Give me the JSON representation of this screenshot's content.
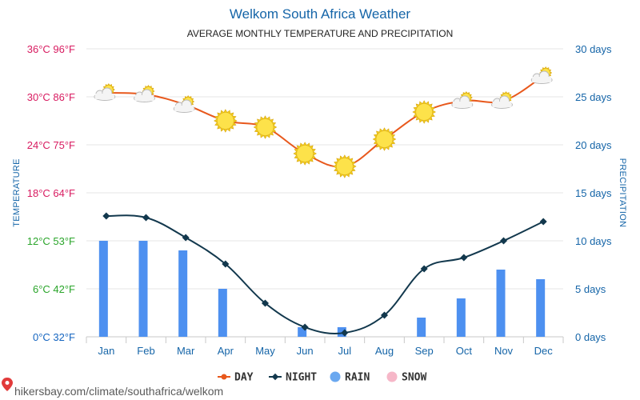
{
  "header": {
    "title": "Welkom South Africa Weather",
    "subtitle": "AVERAGE MONTHLY TEMPERATURE AND PRECIPITATION"
  },
  "footer": {
    "url": "hikersbay.com/climate/southafrica/welkom"
  },
  "colors": {
    "day": "#e8581c",
    "night": "#12384d",
    "rain": "#4d90f0",
    "rain_legend": "#6aa8f0",
    "snow": "#f6b7c8",
    "grid": "#e6e6e6",
    "axis_blue": "#1565a8"
  },
  "chart_data": {
    "type": "line",
    "title": "Welkom South Africa Weather",
    "subtitle": "AVERAGE MONTHLY TEMPERATURE AND PRECIPITATION",
    "ylabel_left": "TEMPERATURE",
    "ylabel_right": "PRECIPITATION",
    "categories": [
      "Jan",
      "Feb",
      "Mar",
      "Apr",
      "May",
      "Jun",
      "Jul",
      "Aug",
      "Sep",
      "Oct",
      "Nov",
      "Dec"
    ],
    "ylim_temp_c": [
      0,
      36
    ],
    "ylim_precip_days": [
      0,
      30
    ],
    "left_ticks": [
      {
        "label": "0°C 32°F",
        "value": 0,
        "color": "#1565c0"
      },
      {
        "label": "6°C 42°F",
        "value": 6,
        "color": "#2aa52a"
      },
      {
        "label": "12°C 53°F",
        "value": 12,
        "color": "#2aa52a"
      },
      {
        "label": "18°C 64°F",
        "value": 18,
        "color": "#d81b60"
      },
      {
        "label": "24°C 75°F",
        "value": 24,
        "color": "#d81b60"
      },
      {
        "label": "30°C 86°F",
        "value": 30,
        "color": "#d81b60"
      },
      {
        "label": "36°C 96°F",
        "value": 36,
        "color": "#d81b60"
      }
    ],
    "right_ticks": [
      {
        "label": "0 days",
        "value": 0
      },
      {
        "label": "5 days",
        "value": 5
      },
      {
        "label": "10 days",
        "value": 10
      },
      {
        "label": "15 days",
        "value": 15
      },
      {
        "label": "20 days",
        "value": 20
      },
      {
        "label": "25 days",
        "value": 25
      },
      {
        "label": "30 days",
        "value": 30
      }
    ],
    "series": [
      {
        "name": "DAY",
        "unit": "°C",
        "values": [
          30.5,
          30.3,
          29.0,
          27.0,
          26.2,
          22.9,
          21.3,
          24.7,
          28.1,
          29.5,
          29.5,
          32.6
        ]
      },
      {
        "name": "NIGHT",
        "unit": "°C",
        "values": [
          15.1,
          14.9,
          12.4,
          9.1,
          4.2,
          1.2,
          0.5,
          2.7,
          8.5,
          9.9,
          12.0,
          14.4
        ]
      },
      {
        "name": "RAIN",
        "unit": "days",
        "values": [
          10,
          10,
          9,
          5,
          0,
          1,
          1,
          0,
          2,
          4,
          7,
          6
        ]
      },
      {
        "name": "SNOW",
        "unit": "days",
        "values": [
          0,
          0,
          0,
          0,
          0,
          0,
          0,
          0,
          0,
          0,
          0,
          0
        ]
      }
    ],
    "weather_icons": [
      "partly-cloudy",
      "partly-cloudy",
      "partly-cloudy",
      "sunny",
      "sunny",
      "sunny",
      "sunny",
      "sunny",
      "sunny",
      "partly-cloudy",
      "partly-cloudy",
      "partly-cloudy"
    ],
    "grid": true,
    "legend_position": "bottom"
  }
}
